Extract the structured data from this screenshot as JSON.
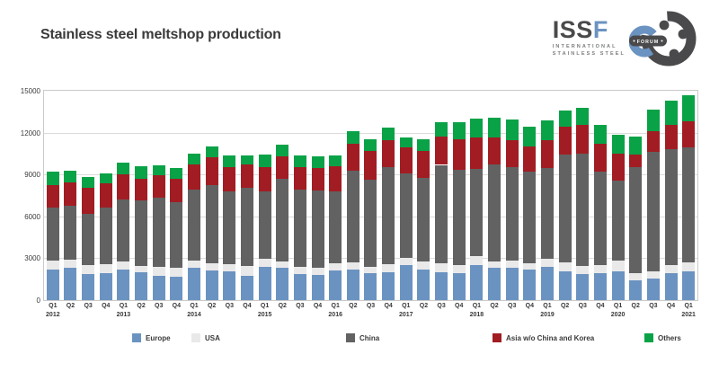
{
  "title": "Stainless steel meltshop production",
  "logo": {
    "acronym_gray": "ISS",
    "acronym_blue": "F",
    "subtitle_line1": "INTERNATIONAL",
    "subtitle_line2": "STAINLESS STEEL",
    "forum_label": "FORUM",
    "color_gray": "#4a4a4c",
    "color_blue": "#6b93c1"
  },
  "colors": {
    "text": "#3a3a3a",
    "plot_border": "#c9cacb",
    "gridline": "#dcdcdc",
    "background": "#ffffff"
  },
  "chart_data": {
    "type": "bar",
    "stacked": true,
    "title": "Stainless steel meltshop production",
    "xlabel": "",
    "ylabel": "",
    "ylim": [
      0,
      15000
    ],
    "yticks": [
      0,
      3000,
      6000,
      9000,
      12000,
      15000
    ],
    "grid": "horizontal",
    "legend_position": "bottom",
    "categories": [
      "Q1",
      "Q2",
      "Q3",
      "Q4",
      "Q1",
      "Q2",
      "Q3",
      "Q4",
      "Q1",
      "Q2",
      "Q3",
      "Q4",
      "Q1",
      "Q2",
      "Q3",
      "Q4",
      "Q1",
      "Q2",
      "Q3",
      "Q4",
      "Q1",
      "Q2",
      "Q3",
      "Q4",
      "Q1",
      "Q2",
      "Q3",
      "Q4",
      "Q1",
      "Q2",
      "Q3",
      "Q4",
      "Q1",
      "Q2",
      "Q3",
      "Q4",
      "Q1"
    ],
    "years": [
      {
        "index": 0,
        "label": "2012"
      },
      {
        "index": 4,
        "label": "2013"
      },
      {
        "index": 8,
        "label": "2014"
      },
      {
        "index": 12,
        "label": "2015"
      },
      {
        "index": 16,
        "label": "2016"
      },
      {
        "index": 20,
        "label": "2017"
      },
      {
        "index": 24,
        "label": "2018"
      },
      {
        "index": 28,
        "label": "2019"
      },
      {
        "index": 32,
        "label": "2020"
      },
      {
        "index": 36,
        "label": "2021"
      }
    ],
    "series": [
      {
        "name": "Europe",
        "slug": "europe",
        "color": "#6b93c1",
        "values": [
          2180,
          2290,
          1840,
          1910,
          2180,
          2020,
          1750,
          1700,
          2290,
          2120,
          2080,
          1750,
          2370,
          2290,
          1860,
          1800,
          2120,
          2160,
          1910,
          2020,
          2480,
          2220,
          2020,
          1950,
          2540,
          2290,
          2330,
          2160,
          2380,
          2050,
          1840,
          1950,
          2080,
          1440,
          1530,
          1950,
          2080
        ]
      },
      {
        "name": "USA",
        "slug": "usa",
        "color": "#e9e9ea",
        "values": [
          680,
          620,
          700,
          680,
          570,
          420,
          650,
          640,
          570,
          530,
          500,
          700,
          600,
          470,
          510,
          530,
          530,
          530,
          460,
          570,
          530,
          530,
          640,
          590,
          640,
          510,
          530,
          490,
          560,
          640,
          590,
          590,
          780,
          470,
          550,
          590,
          610
        ]
      },
      {
        "name": "China",
        "slug": "china",
        "color": "#626262",
        "values": [
          3750,
          3880,
          3640,
          4020,
          4490,
          4700,
          4970,
          4660,
          5090,
          5610,
          5220,
          5600,
          4830,
          5930,
          5570,
          5510,
          5150,
          6590,
          6250,
          6950,
          6040,
          6000,
          7030,
          6780,
          6250,
          6910,
          6670,
          6570,
          6550,
          7740,
          8050,
          6670,
          5720,
          7630,
          8560,
          8260,
          8230
        ]
      },
      {
        "name": "Asia w/o China and Korea",
        "slug": "asia-wo-china-and-korea",
        "color": "#a11d23",
        "values": [
          1650,
          1650,
          1870,
          1760,
          1760,
          1550,
          1550,
          1700,
          1760,
          1970,
          1740,
          1650,
          1740,
          1590,
          1590,
          1650,
          1780,
          1950,
          2080,
          1910,
          1870,
          1950,
          2030,
          2230,
          2220,
          1950,
          1950,
          1800,
          1950,
          1970,
          2050,
          2020,
          1910,
          890,
          1490,
          1740,
          1900
        ]
      },
      {
        "name": "Others",
        "slug": "others",
        "color": "#0aa247",
        "values": [
          950,
          830,
          800,
          740,
          850,
          890,
          740,
          740,
          780,
          780,
          810,
          680,
          890,
          850,
          810,
          790,
          800,
          890,
          850,
          910,
          740,
          810,
          1000,
          1230,
          1380,
          1380,
          1480,
          1380,
          1440,
          1170,
          1270,
          1310,
          1340,
          1270,
          1540,
          1760,
          1840
        ]
      }
    ]
  }
}
